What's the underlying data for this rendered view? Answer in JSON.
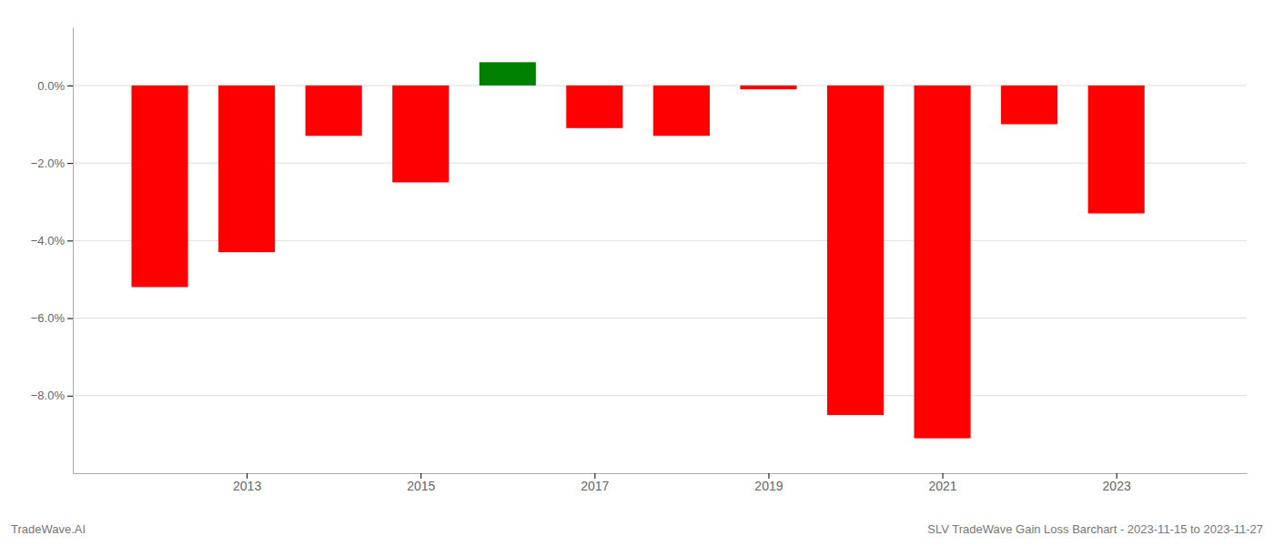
{
  "chart_data": {
    "type": "bar",
    "title": "SLV TradeWave Gain Loss Barchart - 2023-11-15 to 2023-11-27",
    "annotations": [
      "TradeWave.AI"
    ],
    "x": [
      2012,
      2013,
      2014,
      2015,
      2016,
      2017,
      2018,
      2019,
      2020,
      2021,
      2022,
      2023
    ],
    "values": [
      -0.052,
      -0.043,
      -0.013,
      -0.025,
      0.006,
      -0.011,
      -0.013,
      -0.001,
      -0.085,
      -0.091,
      -0.01,
      -0.033
    ],
    "colors": [
      "#ff0000",
      "#ff0000",
      "#ff0000",
      "#ff0000",
      "#008000",
      "#ff0000",
      "#ff0000",
      "#ff0000",
      "#ff0000",
      "#ff0000",
      "#ff0000",
      "#ff0000"
    ],
    "xlim": [
      2011.0,
      2024.5
    ],
    "xticks": [
      2013,
      2015,
      2017,
      2019,
      2021,
      2023
    ],
    "ylim": [
      -0.1,
      0.015
    ],
    "yticks": [
      {
        "value": 0.0,
        "label": "0.0%"
      },
      {
        "value": -0.02,
        "label": "−2.0%"
      },
      {
        "value": -0.04,
        "label": "−4.0%"
      },
      {
        "value": -0.06,
        "label": "−6.0%"
      },
      {
        "value": -0.08,
        "label": "−8.0%"
      }
    ],
    "grid": true
  }
}
